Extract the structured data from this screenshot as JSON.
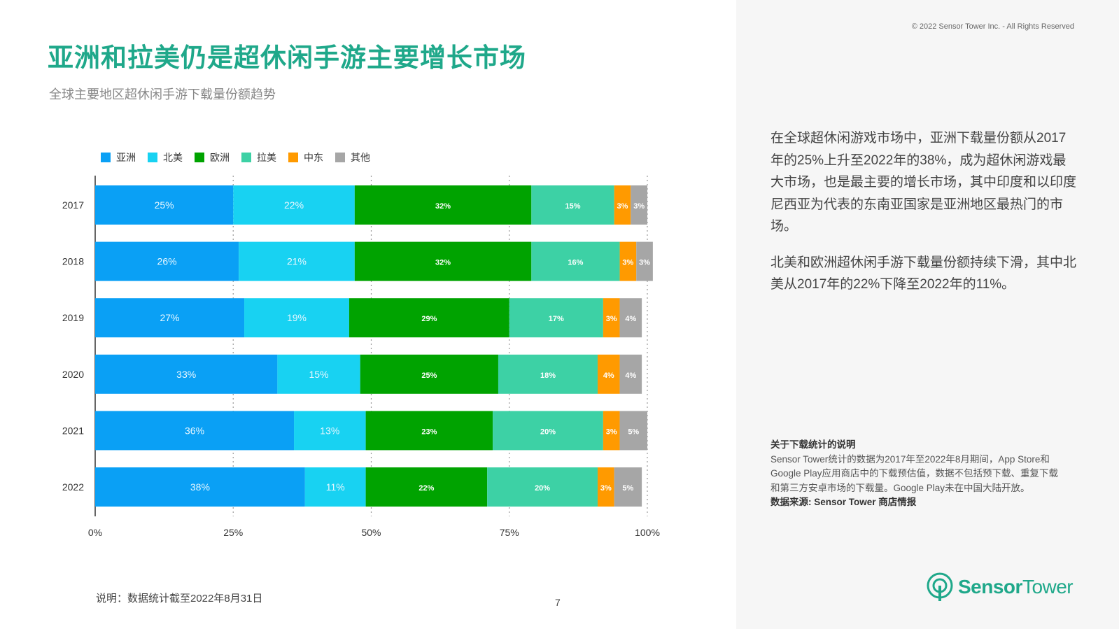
{
  "copyright": "© 2022 Sensor Tower Inc. - All Rights Reserved",
  "title": "亚洲和拉美仍是超休闲手游主要增长市场",
  "subtitle": "全球主要地区超休闲手游下载量份额趋势",
  "body_paragraphs": [
    "在全球超休闲游戏市场中，亚洲下载量份额从2017年的25%上升至2022年的38%，成为超休闲游戏最大市场，也是最主要的增长市场，其中印度和以印度尼西亚为代表的东南亚国家是亚洲地区最热门的市场。",
    "北美和欧洲超休闲手游下载量份额持续下滑，其中北美从2017年的22%下降至2022年的11%。"
  ],
  "note": {
    "title": "关于下载统计的说明",
    "text": "Sensor Tower统计的数据为2017年至2022年8月期间，App Store和Google Play应用商店中的下载预估值，数据不包括预下载、重复下载和第三方安卓市场的下载量。Google Play未在中国大陆开放。",
    "source": "数据来源: Sensor Tower 商店情报"
  },
  "footnote": "说明：数据统计截至2022年8月31日",
  "page_number": "7",
  "logo": {
    "word1": "Sensor",
    "word2": "Tower"
  },
  "chart_data": {
    "type": "bar",
    "orientation": "horizontal",
    "stacked": true,
    "categories": [
      "2017",
      "2018",
      "2019",
      "2020",
      "2021",
      "2022"
    ],
    "series": [
      {
        "name": "亚洲",
        "color": "#0aa0f5",
        "values": [
          25,
          26,
          27,
          33,
          36,
          38
        ],
        "label_style": "light"
      },
      {
        "name": "北美",
        "color": "#18d2f2",
        "values": [
          22,
          21,
          19,
          15,
          13,
          11
        ],
        "label_style": "light"
      },
      {
        "name": "欧洲",
        "color": "#00a300",
        "values": [
          32,
          32,
          29,
          25,
          23,
          22
        ],
        "label_style": "bold"
      },
      {
        "name": "拉美",
        "color": "#3dd1a5",
        "values": [
          15,
          16,
          17,
          18,
          20,
          20
        ],
        "label_style": "bold"
      },
      {
        "name": "中东",
        "color": "#ff9a00",
        "values": [
          3,
          3,
          3,
          4,
          3,
          3
        ],
        "label_style": "bold"
      },
      {
        "name": "其他",
        "color": "#a6a6a6",
        "values": [
          3,
          3,
          4,
          4,
          5,
          5
        ],
        "label_style": "bold"
      }
    ],
    "xlim": [
      0,
      100
    ],
    "x_ticks": [
      "0%",
      "25%",
      "50%",
      "75%",
      "100%"
    ],
    "x_tick_values": [
      0,
      25,
      50,
      75,
      100
    ],
    "legend_position": "top-left",
    "grid": "vertical-dotted"
  }
}
